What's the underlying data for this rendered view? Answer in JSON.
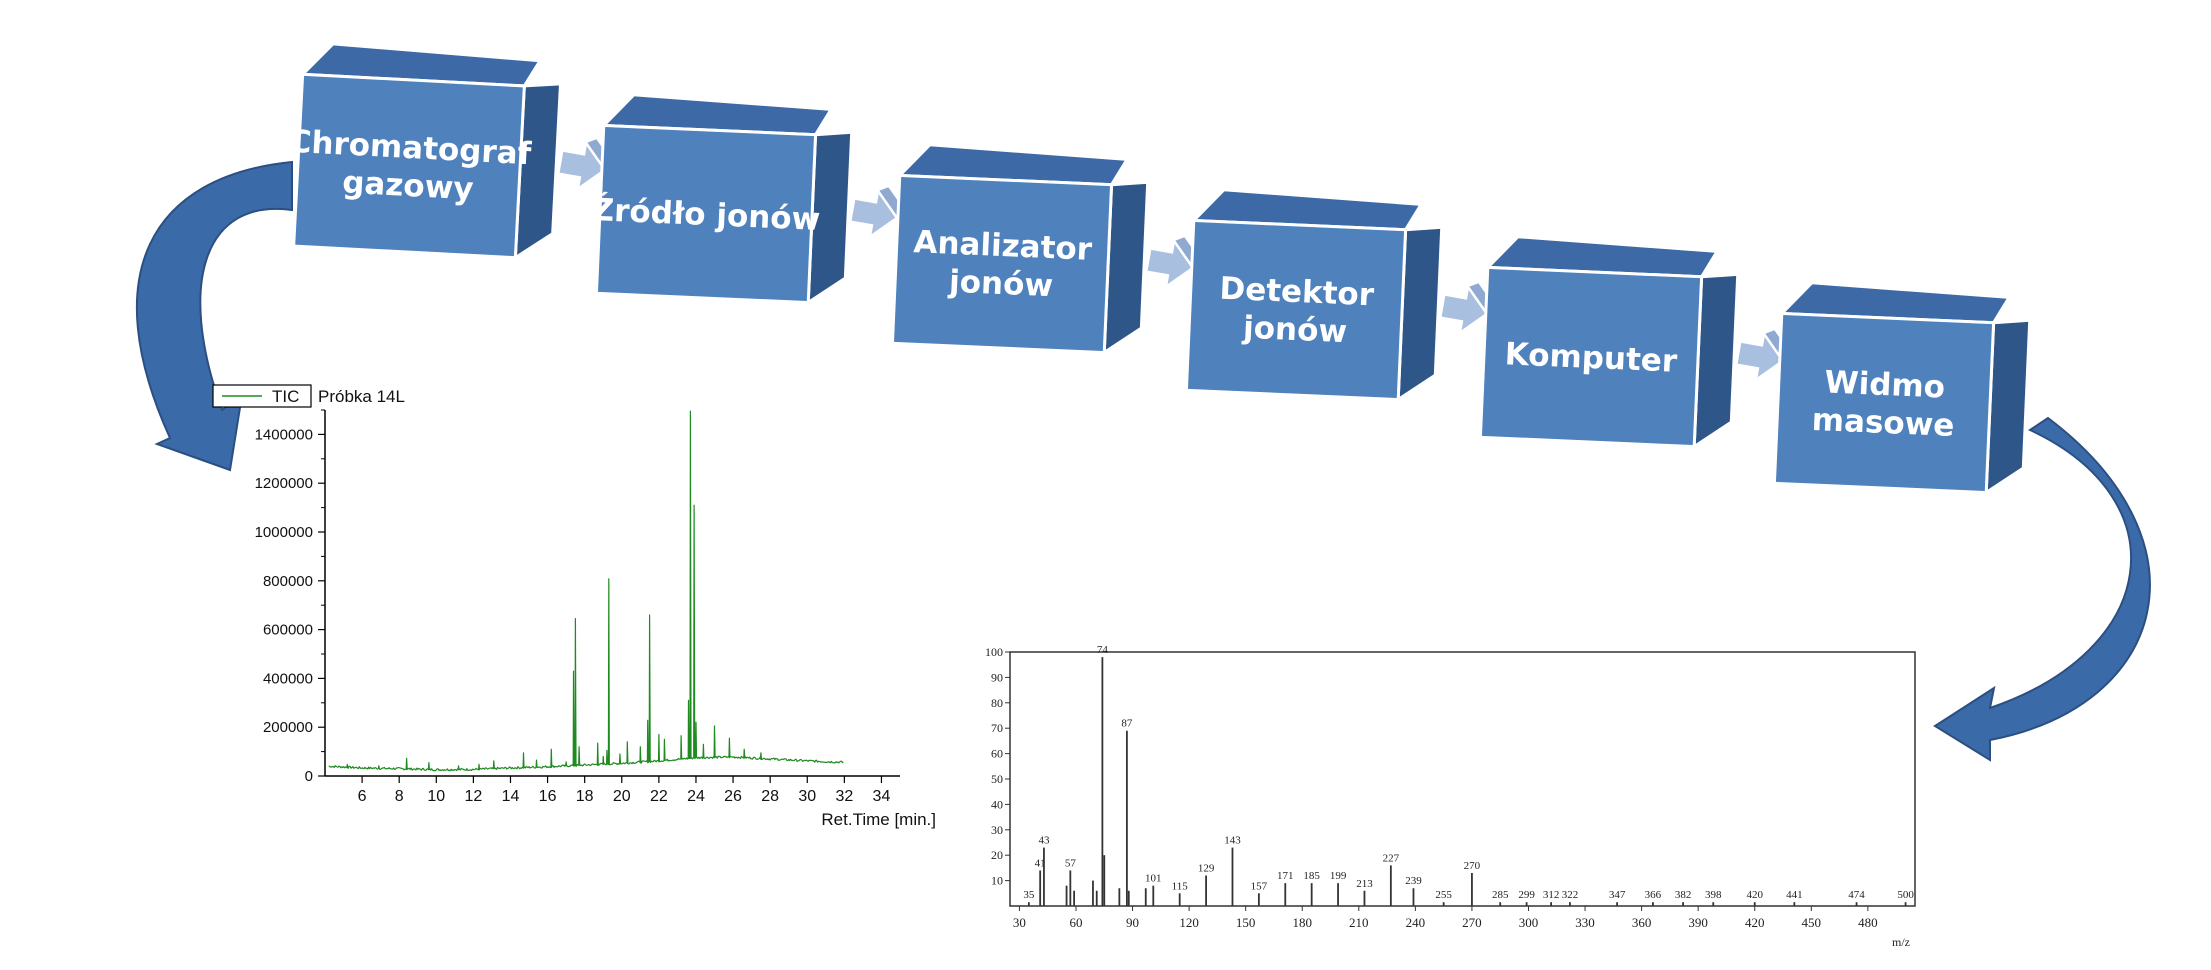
{
  "colors": {
    "block_front": "#4f81bd",
    "block_top": "#3d6aa6",
    "block_side": "#2f5688",
    "block_edge": "#ffffff",
    "connector": "#a9bfe0",
    "curved_arrow": "#3b6aa8",
    "tic_line": "#1f8a1f",
    "ms_bar": "#333333"
  },
  "flow": {
    "blocks": [
      {
        "id": "gc",
        "lines": [
          "Chromatograf",
          "gazowy"
        ]
      },
      {
        "id": "source",
        "lines": [
          "Źródło jonów"
        ]
      },
      {
        "id": "analyzer",
        "lines": [
          "Analizator",
          "jonów"
        ]
      },
      {
        "id": "detector",
        "lines": [
          "Detektor",
          "jonów"
        ]
      },
      {
        "id": "computer",
        "lines": [
          "Komputer"
        ]
      },
      {
        "id": "spectrum",
        "lines": [
          "Widmo",
          "masowe"
        ]
      }
    ],
    "arrow_icon": "block-arrow-right-icon",
    "curved_arrow_icon": "curved-arrow-icon"
  },
  "chart_data": [
    {
      "type": "line",
      "legend": {
        "series_name": "TIC",
        "sample_label": "Próbka 14L",
        "placement": "top-left"
      },
      "xlabel": "Ret.Time [min.]",
      "ylabel": "",
      "xlim": [
        4,
        35
      ],
      "ylim": [
        0,
        1500000
      ],
      "xticks": [
        6,
        8,
        10,
        12,
        14,
        16,
        18,
        20,
        22,
        24,
        26,
        28,
        30,
        32,
        34
      ],
      "yticks": [
        0,
        200000,
        400000,
        600000,
        800000,
        1000000,
        1200000,
        1400000
      ],
      "baseline": [
        [
          4.2,
          40000
        ],
        [
          6,
          33000
        ],
        [
          8,
          30000
        ],
        [
          10,
          26000
        ],
        [
          12,
          27000
        ],
        [
          14,
          33000
        ],
        [
          16,
          38000
        ],
        [
          18,
          45000
        ],
        [
          20,
          52000
        ],
        [
          22,
          62000
        ],
        [
          24,
          75000
        ],
        [
          26,
          78000
        ],
        [
          28,
          70000
        ],
        [
          30,
          62000
        ],
        [
          32,
          56000
        ]
      ],
      "peaks": [
        [
          5.2,
          48000
        ],
        [
          6.9,
          42000
        ],
        [
          8.4,
          72000
        ],
        [
          9.6,
          55000
        ],
        [
          11.2,
          42000
        ],
        [
          12.3,
          48000
        ],
        [
          13.1,
          62000
        ],
        [
          14.7,
          95000
        ],
        [
          15.4,
          65000
        ],
        [
          16.2,
          110000
        ],
        [
          17.0,
          58000
        ],
        [
          17.4,
          430000
        ],
        [
          17.5,
          645000
        ],
        [
          17.7,
          120000
        ],
        [
          18.7,
          135000
        ],
        [
          19.0,
          80000
        ],
        [
          19.2,
          105000
        ],
        [
          19.3,
          808000
        ],
        [
          19.9,
          90000
        ],
        [
          20.3,
          140000
        ],
        [
          21.0,
          120000
        ],
        [
          21.4,
          228000
        ],
        [
          21.5,
          660000
        ],
        [
          22.0,
          170000
        ],
        [
          22.3,
          150000
        ],
        [
          23.2,
          165000
        ],
        [
          23.6,
          310000
        ],
        [
          23.7,
          1495000
        ],
        [
          23.9,
          1110000
        ],
        [
          24.0,
          220000
        ],
        [
          24.4,
          130000
        ],
        [
          25.0,
          205000
        ],
        [
          25.8,
          155000
        ],
        [
          26.6,
          110000
        ],
        [
          27.5,
          95000
        ]
      ]
    },
    {
      "type": "bar",
      "xlabel": "m/z",
      "ylabel": "",
      "xlim": [
        25,
        505
      ],
      "ylim": [
        0,
        100
      ],
      "xticks": [
        30,
        60,
        90,
        120,
        150,
        180,
        210,
        240,
        270,
        300,
        330,
        360,
        390,
        420,
        450,
        480
      ],
      "yticks": [
        10,
        20,
        30,
        40,
        50,
        60,
        70,
        80,
        90,
        100
      ],
      "peaks": [
        {
          "mz": 35,
          "intensity": 1.5,
          "label": "35"
        },
        {
          "mz": 41,
          "intensity": 14,
          "label": "41"
        },
        {
          "mz": 43,
          "intensity": 23,
          "label": "43"
        },
        {
          "mz": 55,
          "intensity": 8,
          "label": ""
        },
        {
          "mz": 57,
          "intensity": 14,
          "label": "57"
        },
        {
          "mz": 59,
          "intensity": 6,
          "label": ""
        },
        {
          "mz": 69,
          "intensity": 10,
          "label": ""
        },
        {
          "mz": 71,
          "intensity": 6,
          "label": ""
        },
        {
          "mz": 74,
          "intensity": 98,
          "label": "74"
        },
        {
          "mz": 75,
          "intensity": 20,
          "label": ""
        },
        {
          "mz": 83,
          "intensity": 7,
          "label": ""
        },
        {
          "mz": 87,
          "intensity": 69,
          "label": "87"
        },
        {
          "mz": 88,
          "intensity": 6,
          "label": ""
        },
        {
          "mz": 97,
          "intensity": 7,
          "label": ""
        },
        {
          "mz": 101,
          "intensity": 8,
          "label": "101"
        },
        {
          "mz": 115,
          "intensity": 5,
          "label": "115"
        },
        {
          "mz": 129,
          "intensity": 12,
          "label": "129"
        },
        {
          "mz": 143,
          "intensity": 23,
          "label": "143"
        },
        {
          "mz": 157,
          "intensity": 5,
          "label": "157"
        },
        {
          "mz": 171,
          "intensity": 9,
          "label": "171"
        },
        {
          "mz": 185,
          "intensity": 9,
          "label": "185"
        },
        {
          "mz": 199,
          "intensity": 9,
          "label": "199"
        },
        {
          "mz": 213,
          "intensity": 6,
          "label": "213"
        },
        {
          "mz": 227,
          "intensity": 16,
          "label": "227"
        },
        {
          "mz": 239,
          "intensity": 7,
          "label": "239"
        },
        {
          "mz": 255,
          "intensity": 1.5,
          "label": "255"
        },
        {
          "mz": 270,
          "intensity": 13,
          "label": "270"
        },
        {
          "mz": 285,
          "intensity": 1.5,
          "label": "285"
        },
        {
          "mz": 299,
          "intensity": 1.5,
          "label": "299"
        },
        {
          "mz": 312,
          "intensity": 1.5,
          "label": "312"
        },
        {
          "mz": 322,
          "intensity": 1.5,
          "label": "322"
        },
        {
          "mz": 347,
          "intensity": 1.5,
          "label": "347"
        },
        {
          "mz": 366,
          "intensity": 1.5,
          "label": "366"
        },
        {
          "mz": 382,
          "intensity": 1.5,
          "label": "382"
        },
        {
          "mz": 398,
          "intensity": 1.5,
          "label": "398"
        },
        {
          "mz": 420,
          "intensity": 1.5,
          "label": "420"
        },
        {
          "mz": 441,
          "intensity": 1.5,
          "label": "441"
        },
        {
          "mz": 474,
          "intensity": 1.5,
          "label": "474"
        },
        {
          "mz": 500,
          "intensity": 1.5,
          "label": "500"
        }
      ]
    }
  ]
}
